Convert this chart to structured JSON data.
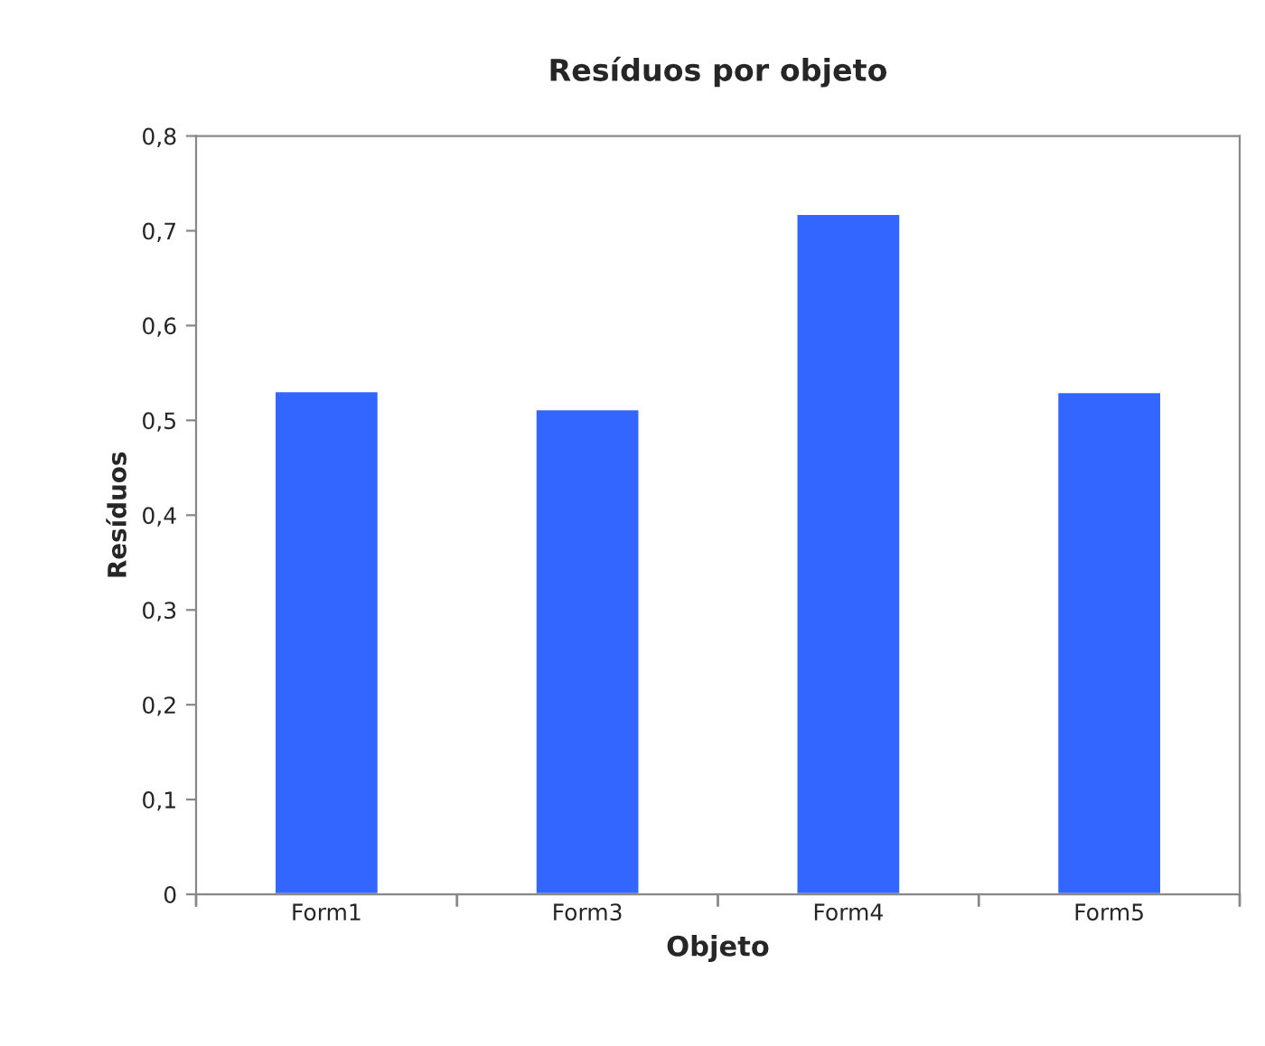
{
  "chart_data": {
    "type": "bar",
    "title": "Resíduos por objeto",
    "xlabel": "Objeto",
    "ylabel": "Resíduos",
    "categories": [
      "Form1",
      "Form3",
      "Form4",
      "Form5"
    ],
    "values": [
      0.531,
      0.512,
      0.718,
      0.53
    ],
    "color": "#3366ff",
    "ylim": [
      0,
      0.8
    ],
    "yticks": [
      0,
      {
        "value": 0.1,
        "label": "0,1"
      },
      {
        "value": 0.2,
        "label": "0,2"
      },
      {
        "value": 0.3,
        "label": "0,3"
      },
      {
        "value": 0.4,
        "label": "0,4"
      },
      {
        "value": 0.5,
        "label": "0,5"
      },
      {
        "value": 0.6,
        "label": "0,6"
      },
      {
        "value": 0.7,
        "label": "0,7"
      },
      {
        "value": 0.8,
        "label": "0,8"
      }
    ],
    "grid": false,
    "legend": false
  }
}
